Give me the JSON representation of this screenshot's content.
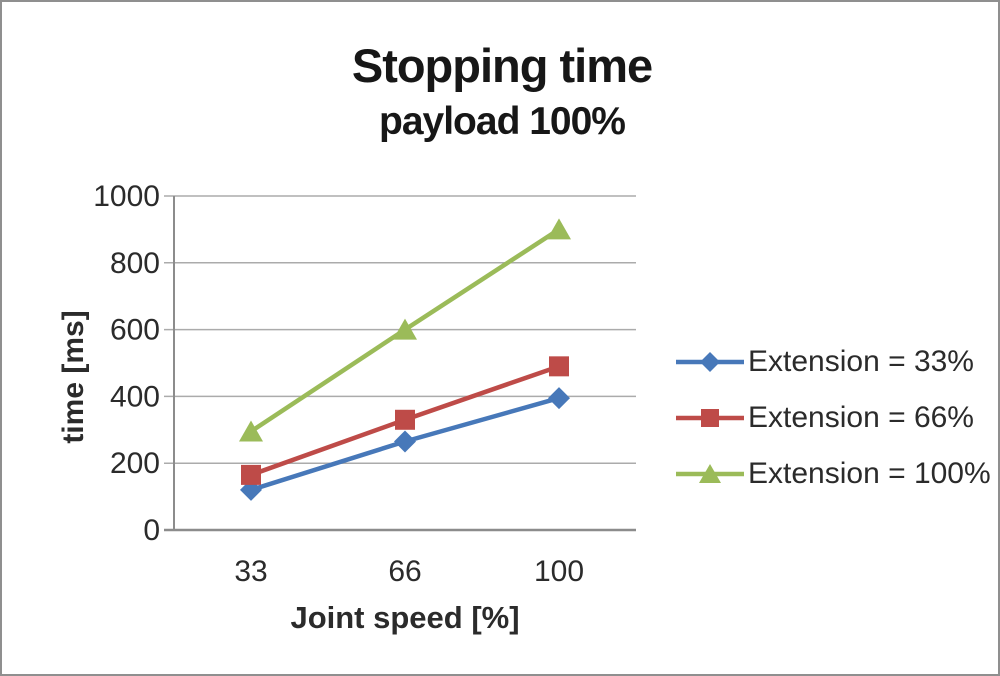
{
  "chart_data": {
    "type": "line",
    "title": "Stopping time",
    "subtitle": "payload 100%",
    "xlabel": "Joint speed [%]",
    "ylabel": "time [ms]",
    "categories": [
      "33",
      "66",
      "100"
    ],
    "yticks": [
      0,
      200,
      400,
      600,
      800,
      1000
    ],
    "ylim": [
      0,
      1000
    ],
    "grid": true,
    "legend_position": "right",
    "series": [
      {
        "name": "Extension = 33%",
        "marker": "diamond",
        "color": "#4778B9",
        "values": [
          120,
          265,
          395
        ]
      },
      {
        "name": "Extension = 66%",
        "marker": "square",
        "color": "#BE4B48",
        "values": [
          165,
          330,
          490
        ]
      },
      {
        "name": "Extension = 100%",
        "marker": "triangle",
        "color": "#9BBB59",
        "values": [
          295,
          600,
          900
        ]
      }
    ],
    "colors": {
      "gridline": "#ABABAB",
      "axis": "#8C8C8C",
      "text": "#2B2B2B"
    }
  }
}
